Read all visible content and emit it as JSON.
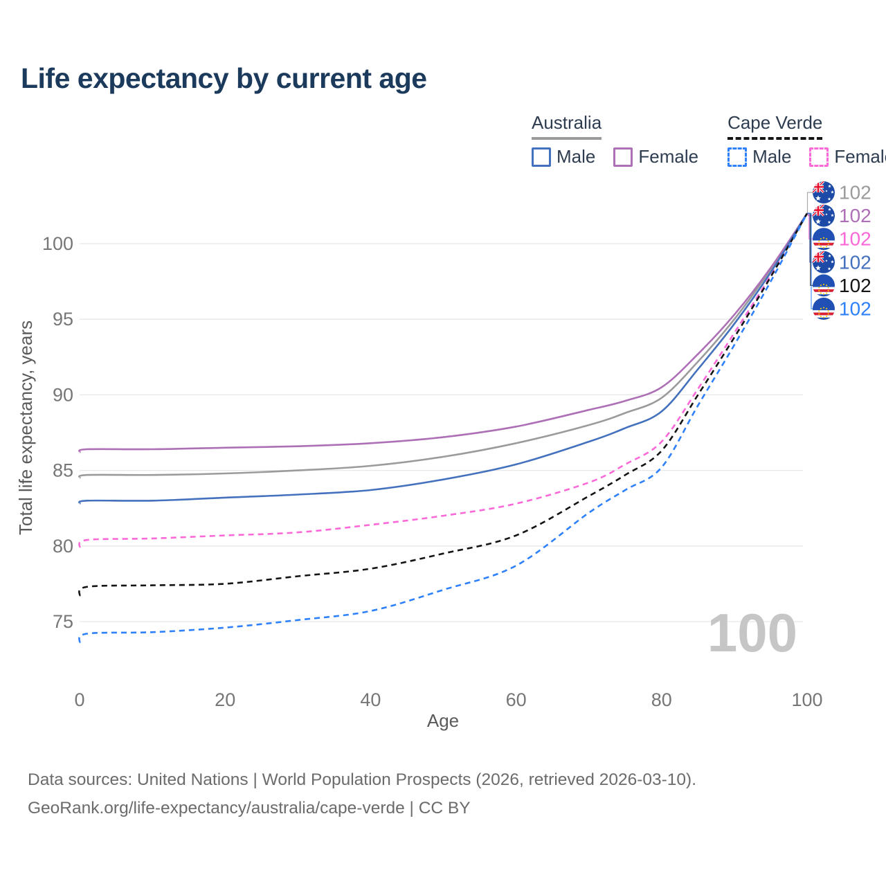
{
  "title": "Life expectancy by current age",
  "legend": {
    "groups": [
      {
        "label": "Australia",
        "line_style": "solid",
        "underline_color": "#9b9b9b",
        "items": [
          {
            "label": "Male",
            "color": "#4471bd",
            "dashed": false
          },
          {
            "label": "Female",
            "color": "#ad6fb5",
            "dashed": false
          }
        ]
      },
      {
        "label": "Cape Verde",
        "line_style": "dashed",
        "underline_color": "#141414",
        "items": [
          {
            "label": "Male",
            "color": "#2e80fb",
            "dashed": true
          },
          {
            "label": "Female",
            "color": "#fb68d8",
            "dashed": true
          }
        ]
      }
    ]
  },
  "watermark_age": "100",
  "footer": {
    "line1": "Data sources: United Nations | World Population Prospects (2026, retrieved 2026-03-10).",
    "line2": "GeoRank.org/life-expectancy/australia/cape-verde | CC BY"
  },
  "chart_data": {
    "type": "line",
    "title": "Life expectancy by current age",
    "xlabel": "Age",
    "ylabel": "Total life expectancy, years",
    "xlim": [
      0,
      100
    ],
    "ylim": [
      73,
      103
    ],
    "xticks": [
      0,
      20,
      40,
      60,
      80,
      100
    ],
    "yticks": [
      75,
      80,
      85,
      90,
      95,
      100
    ],
    "grid": "horizontal-only",
    "legend_position": "top-right",
    "x": [
      0,
      1,
      10,
      20,
      30,
      40,
      50,
      60,
      70,
      75,
      80,
      85,
      90,
      95,
      100
    ],
    "series": [
      {
        "id": "australia-all",
        "country": "Australia",
        "sex": "All",
        "color": "#9b9b9b",
        "dashed": false,
        "flag": "AU",
        "end_label": "102",
        "values": [
          84.5,
          84.7,
          84.7,
          84.8,
          85.0,
          85.3,
          85.9,
          86.8,
          88.0,
          88.8,
          89.8,
          92.2,
          95.0,
          98.3,
          102
        ]
      },
      {
        "id": "australia-female",
        "country": "Australia",
        "sex": "Female",
        "color": "#ad6fb5",
        "dashed": false,
        "flag": "AU",
        "end_label": "102",
        "values": [
          86.2,
          86.4,
          86.4,
          86.5,
          86.6,
          86.8,
          87.2,
          87.9,
          89.0,
          89.6,
          90.5,
          92.7,
          95.3,
          98.4,
          102
        ]
      },
      {
        "id": "cape-verde-female",
        "country": "Cape Verde",
        "sex": "Female",
        "color": "#fb68d8",
        "dashed": true,
        "flag": "CV",
        "end_label": "102",
        "values": [
          79.9,
          80.4,
          80.5,
          80.7,
          80.9,
          81.4,
          82.0,
          82.8,
          84.2,
          85.4,
          86.9,
          90.4,
          94.1,
          97.9,
          102
        ]
      },
      {
        "id": "australia-male",
        "country": "Australia",
        "sex": "Male",
        "color": "#4471bd",
        "dashed": false,
        "flag": "AU",
        "end_label": "102",
        "values": [
          82.8,
          83.0,
          83.0,
          83.2,
          83.4,
          83.7,
          84.4,
          85.4,
          86.9,
          87.8,
          88.9,
          91.7,
          94.7,
          98.1,
          102
        ]
      },
      {
        "id": "cape-verde-all",
        "country": "Cape Verde",
        "sex": "All",
        "color": "#141414",
        "dashed": true,
        "flag": "CV",
        "end_label": "102",
        "values": [
          76.7,
          77.3,
          77.4,
          77.5,
          78.0,
          78.5,
          79.5,
          80.7,
          83.3,
          84.7,
          86.3,
          90.0,
          93.8,
          97.8,
          102
        ]
      },
      {
        "id": "cape-verde-male",
        "country": "Cape Verde",
        "sex": "Male",
        "color": "#2e80fb",
        "dashed": true,
        "flag": "CV",
        "end_label": "102",
        "values": [
          73.6,
          74.2,
          74.3,
          74.6,
          75.1,
          75.7,
          77.1,
          78.7,
          82.2,
          83.7,
          85.2,
          89.3,
          93.3,
          97.5,
          102
        ]
      }
    ],
    "colors": {
      "grid": "#e7e7e7",
      "tick_label": "#767676",
      "axis_title": "#5a5a5a",
      "watermark": "#c6c6c6",
      "flag_blue_au": "#1c4aa6",
      "flag_blue_cv": "#2050b4",
      "flag_red": "#e8112d",
      "flag_yellow": "#ffce00"
    }
  }
}
